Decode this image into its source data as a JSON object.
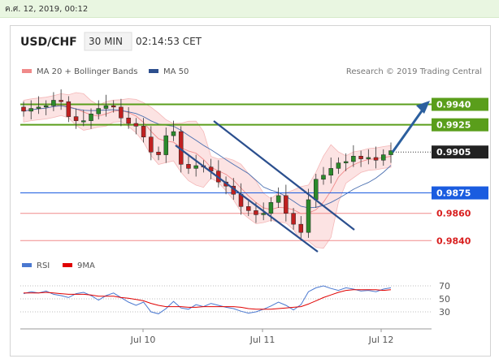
{
  "header": {
    "timestamp": "ค.ศ. 12, 2019, 00:12"
  },
  "chart": {
    "pair": "USD/CHF",
    "timeframe": "30 MIN",
    "time": "02:14:53 CET",
    "credit": "Research © 2019 Trading Central",
    "legend": [
      {
        "label": "MA 20 + Bollinger Bands",
        "color": "#f08a8a"
      },
      {
        "label": "MA 50",
        "color": "#2d4f8e"
      }
    ],
    "rsi_legend": [
      {
        "label": "RSI",
        "color": "#4a78d0"
      },
      {
        "label": "9MA",
        "color": "#e00000"
      }
    ],
    "colors": {
      "resistance": "#5a9e1b",
      "support": "#f08c8c",
      "pivot": "#1a5ce0",
      "arrow": "#2b5f9e",
      "channel": "#2b4f8e"
    }
  },
  "chart_data": {
    "type": "candlestick",
    "x_ticks": [
      "Jul 10",
      "Jul 11",
      "Jul 12"
    ],
    "y_range": [
      0.9833,
      0.9957
    ],
    "levels": [
      {
        "value": 0.994,
        "label": "0.9940",
        "kind": "resistance"
      },
      {
        "value": 0.9925,
        "label": "0.9925",
        "kind": "resistance"
      },
      {
        "value": 0.9905,
        "label": "0.9905",
        "kind": "current"
      },
      {
        "value": 0.9875,
        "label": "0.9875",
        "kind": "pivot"
      },
      {
        "value": 0.986,
        "label": "0.9860",
        "kind": "support"
      },
      {
        "value": 0.984,
        "label": "0.9840",
        "kind": "support"
      }
    ],
    "close_path": [
      0.9935,
      0.9937,
      0.9938,
      0.9939,
      0.9943,
      0.9942,
      0.9931,
      0.9928,
      0.9928,
      0.9933,
      0.9937,
      0.9939,
      0.9938,
      0.993,
      0.9926,
      0.9924,
      0.9916,
      0.9905,
      0.9903,
      0.9917,
      0.992,
      0.9896,
      0.9893,
      0.9895,
      0.9894,
      0.9891,
      0.9883,
      0.988,
      0.9874,
      0.9865,
      0.9862,
      0.9859,
      0.986,
      0.9868,
      0.9873,
      0.986,
      0.9852,
      0.9846,
      0.987,
      0.9885,
      0.9888,
      0.9893,
      0.9897,
      0.9898,
      0.9902,
      0.99,
      0.9901,
      0.9899,
      0.9903,
      0.9906
    ],
    "rsi": {
      "y_ticks": [
        70,
        50,
        30
      ],
      "rsi": [
        58,
        61,
        59,
        62,
        57,
        55,
        52,
        58,
        60,
        55,
        48,
        55,
        59,
        52,
        45,
        40,
        45,
        30,
        27,
        35,
        46,
        36,
        34,
        41,
        38,
        43,
        40,
        37,
        35,
        31,
        28,
        30,
        34,
        39,
        45,
        40,
        33,
        41,
        61,
        67,
        70,
        66,
        63,
        67,
        65,
        62,
        63,
        61,
        65,
        67
      ],
      "ma9": [
        59,
        59,
        59,
        60,
        59,
        58,
        57,
        57,
        57,
        56,
        54,
        54,
        54,
        52,
        51,
        49,
        47,
        43,
        40,
        38,
        38,
        38,
        37,
        37,
        38,
        38,
        38,
        38,
        38,
        37,
        35,
        34,
        34,
        34,
        35,
        36,
        37,
        38,
        42,
        47,
        52,
        56,
        60,
        63,
        64,
        64,
        64,
        64,
        63,
        64
      ]
    }
  }
}
